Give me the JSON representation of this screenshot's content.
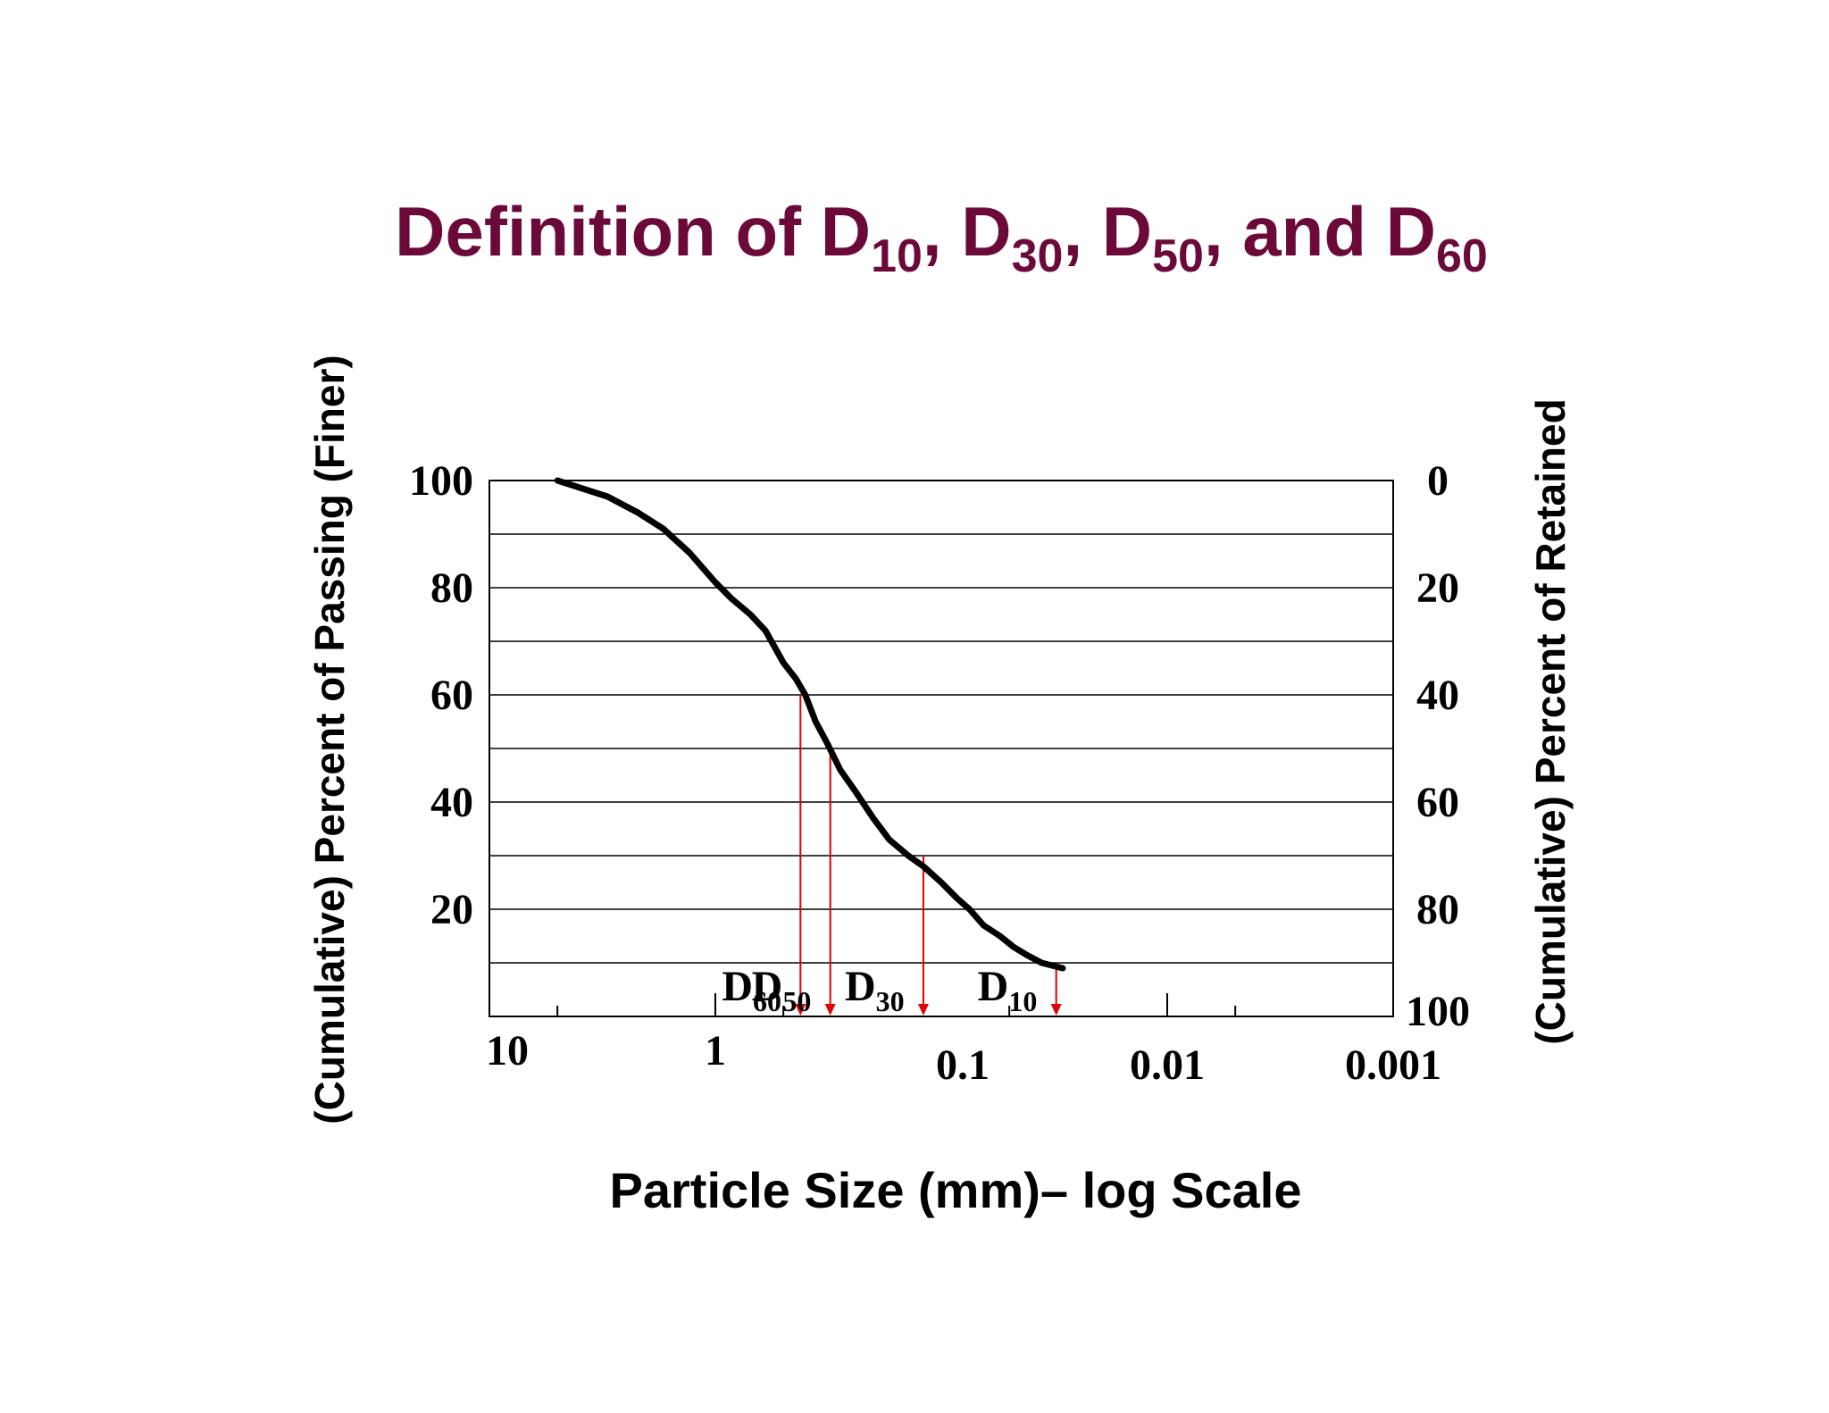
{
  "chart_data": {
    "type": "line",
    "title_parts": {
      "lead": "Definition of D",
      "sub10": "10",
      "sep1": ", D",
      "sub30": "30",
      "sep2": ", D",
      "sub50": "50",
      "sep3": ", and D",
      "sub60": "60"
    },
    "xlabel": "Particle Size (mm)– log Scale",
    "ylabel_left": "(Cumulative) Percent of Passing (Finer)",
    "ylabel_right": "(Cumulative) Percent of Retained",
    "x_scale": "log",
    "x_direction": "reversed",
    "xlim": [
      10,
      0.001
    ],
    "x_ticks": [
      {
        "value": 10,
        "label": "10"
      },
      {
        "value": 1,
        "label": "1"
      },
      {
        "value": 0.1,
        "label": "0.1"
      },
      {
        "value": 0.01,
        "label": "0.01"
      },
      {
        "value": 0.001,
        "label": "0.001"
      }
    ],
    "x_minor_ticks": [
      5,
      0.5,
      0.05,
      0.005
    ],
    "ylim": [
      0,
      100
    ],
    "y_left_ticks": [
      {
        "value": 20,
        "label": "20"
      },
      {
        "value": 40,
        "label": "40"
      },
      {
        "value": 60,
        "label": "60"
      },
      {
        "value": 80,
        "label": "80"
      },
      {
        "value": 100,
        "label": "100"
      }
    ],
    "y_right_ticks": [
      {
        "value": 100,
        "label": "0"
      },
      {
        "value": 80,
        "label": "20"
      },
      {
        "value": 60,
        "label": "40"
      },
      {
        "value": 40,
        "label": "60"
      },
      {
        "value": 20,
        "label": "80"
      },
      {
        "value": 0,
        "label": "100"
      }
    ],
    "gridlines_y": [
      10,
      20,
      30,
      40,
      50,
      60,
      70,
      80,
      90
    ],
    "grid": true,
    "series": [
      {
        "color": "#000000",
        "x": [
          5.0,
          3.0,
          2.2,
          1.7,
          1.3,
          1.0,
          0.85,
          0.7,
          0.6,
          0.5,
          0.44,
          0.4,
          0.36,
          0.32,
          0.28,
          0.24,
          0.2,
          0.17,
          0.14,
          0.12,
          0.1,
          0.085,
          0.075,
          0.065,
          0.055,
          0.048,
          0.042,
          0.036,
          0.029
        ],
        "y": [
          100,
          97,
          94,
          91,
          86.5,
          81,
          78,
          75,
          72,
          66,
          63,
          60,
          55,
          51,
          46,
          42,
          37,
          33,
          30,
          28,
          25,
          22,
          20,
          17,
          15,
          13,
          11.5,
          10,
          9
        ]
      }
    ],
    "annotations": [
      {
        "name": "D",
        "sub": "60",
        "x": 0.42,
        "y": 60
      },
      {
        "name": "D",
        "sub": "50",
        "x": 0.31,
        "y": 50
      },
      {
        "name": "D",
        "sub": "30",
        "x": 0.12,
        "y": 30
      },
      {
        "name": "D",
        "sub": "10",
        "x": 0.031,
        "y": 10
      }
    ],
    "colors": {
      "title": "#6b0a38",
      "curve": "#000000",
      "markers": "#e00000",
      "grid": "#000000"
    }
  }
}
